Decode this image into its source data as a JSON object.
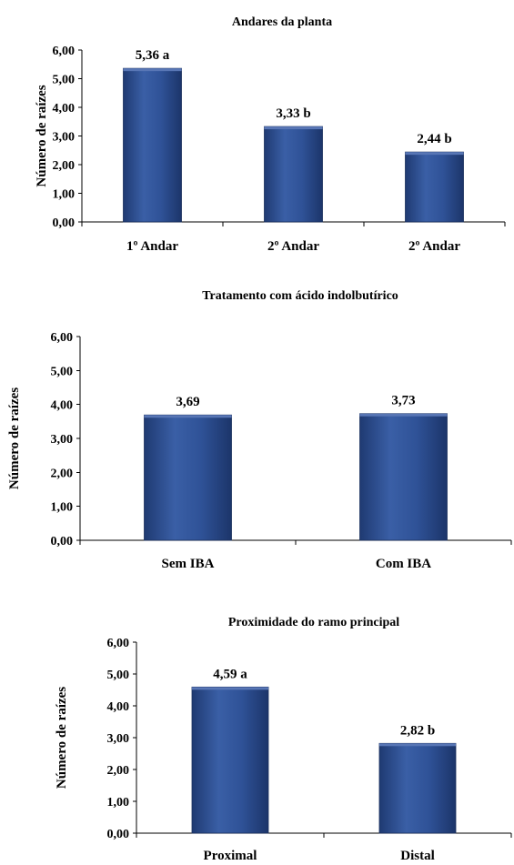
{
  "chart_data": [
    {
      "type": "bar",
      "title": "Andares da planta",
      "ylabel": "Número de raízes",
      "xlabel": "",
      "ylim": [
        0,
        6
      ],
      "yticks": [
        "0,00",
        "1,00",
        "2,00",
        "3,00",
        "4,00",
        "5,00",
        "6,00"
      ],
      "categories": [
        "1º Andar",
        "2º Andar",
        "2º Andar"
      ],
      "values": [
        5.36,
        3.33,
        2.44
      ],
      "data_labels": [
        "5,36 a",
        "3,33 b",
        "2,44 b"
      ],
      "bar_color": "#2E4E8F",
      "grid": false,
      "legend": "none"
    },
    {
      "type": "bar",
      "title": "Tratamento com ácido indolbutírico",
      "ylabel": "Número de raízes",
      "xlabel": "",
      "ylim": [
        0,
        6
      ],
      "yticks": [
        "0,00",
        "1,00",
        "2,00",
        "3,00",
        "4,00",
        "5,00",
        "6,00"
      ],
      "categories": [
        "Sem IBA",
        "Com IBA"
      ],
      "values": [
        3.69,
        3.73
      ],
      "data_labels": [
        "3,69",
        "3,73"
      ],
      "bar_color": "#2E4E8F",
      "grid": false,
      "legend": "none"
    },
    {
      "type": "bar",
      "title": "Proximidade do ramo principal",
      "ylabel": "Número de raízes",
      "xlabel": "",
      "ylim": [
        0,
        6
      ],
      "yticks": [
        "0,00",
        "1,00",
        "2,00",
        "3,00",
        "4,00",
        "5,00",
        "6,00"
      ],
      "categories": [
        "Proximal",
        "Distal"
      ],
      "values": [
        4.59,
        2.82
      ],
      "data_labels": [
        "4,59 a",
        "2,82 b"
      ],
      "bar_color": "#2E4E8F",
      "grid": false,
      "legend": "none"
    }
  ]
}
